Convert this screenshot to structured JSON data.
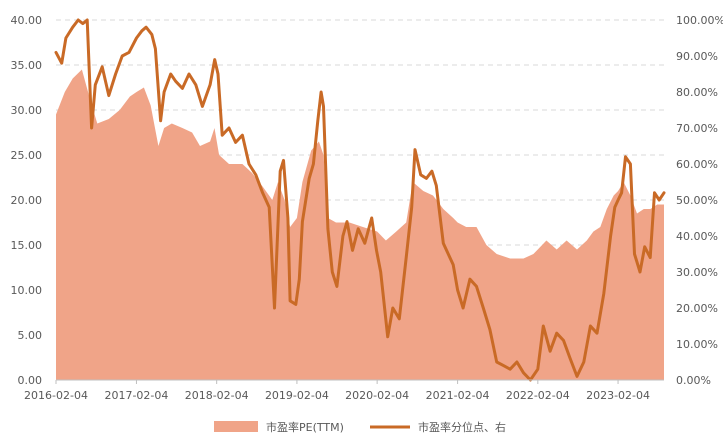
{
  "chart_data": {
    "type": "area",
    "title": "",
    "xlabel": "",
    "ylabel": "",
    "x_ticks": [
      "2016-02-04",
      "2017-02-04",
      "2018-02-04",
      "2019-02-04",
      "2020-02-04",
      "2021-02-04",
      "2022-02-04",
      "2023-02-04"
    ],
    "x_range": [
      "2016-02-04",
      "2023-09-01"
    ],
    "y_left_ticks": [
      "0.00",
      "5.00",
      "10.00",
      "15.00",
      "20.00",
      "25.00",
      "30.00",
      "35.00",
      "40.00"
    ],
    "y_left_range": [
      0,
      40
    ],
    "y_right_ticks": [
      "0.00%",
      "10.00%",
      "20.00%",
      "30.00%",
      "40.00%",
      "50.00%",
      "60.00%",
      "70.00%",
      "80.00%",
      "90.00%",
      "100.00%"
    ],
    "y_right_range": [
      0,
      100
    ],
    "grid": "horizontal dashed",
    "legend_position": "bottom",
    "series": [
      {
        "name": "市盈率PE(TTM)",
        "type": "area",
        "axis": "left",
        "color": "#f0a488",
        "points": [
          [
            "2016-02-04",
            29.5
          ],
          [
            "2016-03-15",
            32.0
          ],
          [
            "2016-04-20",
            33.5
          ],
          [
            "2016-06-01",
            34.5
          ],
          [
            "2016-07-10",
            31.0
          ],
          [
            "2016-08-10",
            28.5
          ],
          [
            "2016-10-01",
            29.0
          ],
          [
            "2016-11-20",
            30.0
          ],
          [
            "2017-01-05",
            31.5
          ],
          [
            "2017-02-04",
            32.0
          ],
          [
            "2017-03-10",
            32.5
          ],
          [
            "2017-04-10",
            30.5
          ],
          [
            "2017-05-15",
            26.0
          ],
          [
            "2017-06-10",
            28.0
          ],
          [
            "2017-07-15",
            28.5
          ],
          [
            "2017-09-01",
            28.0
          ],
          [
            "2017-10-15",
            27.5
          ],
          [
            "2017-11-20",
            26.0
          ],
          [
            "2018-01-05",
            26.5
          ],
          [
            "2018-01-25",
            28.0
          ],
          [
            "2018-02-15",
            25.0
          ],
          [
            "2018-04-01",
            24.0
          ],
          [
            "2018-06-01",
            24.0
          ],
          [
            "2018-07-15",
            23.0
          ],
          [
            "2018-09-01",
            21.5
          ],
          [
            "2018-10-15",
            20.0
          ],
          [
            "2018-11-10",
            22.0
          ],
          [
            "2018-12-10",
            20.0
          ],
          [
            "2019-01-04",
            17.0
          ],
          [
            "2019-02-04",
            18.0
          ],
          [
            "2019-03-01",
            22.0
          ],
          [
            "2019-04-10",
            25.5
          ],
          [
            "2019-05-15",
            26.5
          ],
          [
            "2019-06-05",
            25.0
          ],
          [
            "2019-06-25",
            18.0
          ],
          [
            "2019-08-01",
            17.5
          ],
          [
            "2019-10-01",
            17.5
          ],
          [
            "2019-12-01",
            17.0
          ],
          [
            "2020-02-04",
            16.5
          ],
          [
            "2020-03-15",
            15.5
          ],
          [
            "2020-05-01",
            16.5
          ],
          [
            "2020-06-15",
            17.5
          ],
          [
            "2020-07-15",
            22.0
          ],
          [
            "2020-09-01",
            21.0
          ],
          [
            "2020-10-15",
            20.5
          ],
          [
            "2020-12-01",
            19.0
          ],
          [
            "2021-01-15",
            18.0
          ],
          [
            "2021-02-04",
            17.5
          ],
          [
            "2021-03-15",
            17.0
          ],
          [
            "2021-05-01",
            17.0
          ],
          [
            "2021-06-15",
            15.0
          ],
          [
            "2021-08-01",
            14.0
          ],
          [
            "2021-10-01",
            13.5
          ],
          [
            "2021-12-01",
            13.5
          ],
          [
            "2022-01-15",
            14.0
          ],
          [
            "2022-02-04",
            14.5
          ],
          [
            "2022-03-15",
            15.5
          ],
          [
            "2022-05-01",
            14.5
          ],
          [
            "2022-06-15",
            15.5
          ],
          [
            "2022-08-01",
            14.5
          ],
          [
            "2022-09-15",
            15.5
          ],
          [
            "2022-10-15",
            16.5
          ],
          [
            "2022-11-15",
            17.0
          ],
          [
            "2022-12-15",
            19.0
          ],
          [
            "2023-01-15",
            20.5
          ],
          [
            "2023-02-04",
            21.0
          ],
          [
            "2023-03-01",
            22.0
          ],
          [
            "2023-04-01",
            20.5
          ],
          [
            "2023-05-01",
            18.5
          ],
          [
            "2023-06-01",
            19.0
          ],
          [
            "2023-07-01",
            19.0
          ],
          [
            "2023-08-01",
            19.5
          ],
          [
            "2023-09-01",
            19.5
          ]
        ]
      },
      {
        "name": "市盈率分位点、右",
        "type": "line",
        "axis": "right",
        "color": "#c96a26",
        "points": [
          [
            "2016-02-04",
            91
          ],
          [
            "2016-03-01",
            88
          ],
          [
            "2016-03-20",
            95
          ],
          [
            "2016-04-20",
            98
          ],
          [
            "2016-05-15",
            100
          ],
          [
            "2016-06-05",
            99
          ],
          [
            "2016-06-25",
            100
          ],
          [
            "2016-07-15",
            70
          ],
          [
            "2016-08-01",
            82
          ],
          [
            "2016-09-01",
            87
          ],
          [
            "2016-10-01",
            79
          ],
          [
            "2016-11-01",
            85
          ],
          [
            "2016-12-01",
            90
          ],
          [
            "2017-01-01",
            91
          ],
          [
            "2017-02-04",
            95
          ],
          [
            "2017-03-01",
            97
          ],
          [
            "2017-03-20",
            98
          ],
          [
            "2017-04-15",
            96
          ],
          [
            "2017-05-01",
            92
          ],
          [
            "2017-05-25",
            72
          ],
          [
            "2017-06-10",
            80
          ],
          [
            "2017-07-10",
            85
          ],
          [
            "2017-08-01",
            83
          ],
          [
            "2017-09-01",
            81
          ],
          [
            "2017-10-01",
            85
          ],
          [
            "2017-11-01",
            82
          ],
          [
            "2017-12-01",
            76
          ],
          [
            "2018-01-05",
            82
          ],
          [
            "2018-01-26",
            89
          ],
          [
            "2018-02-10",
            85
          ],
          [
            "2018-03-01",
            68
          ],
          [
            "2018-04-01",
            70
          ],
          [
            "2018-05-01",
            66
          ],
          [
            "2018-06-01",
            68
          ],
          [
            "2018-07-01",
            60
          ],
          [
            "2018-08-01",
            57
          ],
          [
            "2018-09-01",
            52
          ],
          [
            "2018-10-01",
            48
          ],
          [
            "2018-10-25",
            20
          ],
          [
            "2018-11-20",
            58
          ],
          [
            "2018-12-05",
            61
          ],
          [
            "2018-12-25",
            45
          ],
          [
            "2019-01-04",
            22
          ],
          [
            "2019-01-30",
            21
          ],
          [
            "2019-02-15",
            28
          ],
          [
            "2019-03-01",
            44
          ],
          [
            "2019-04-01",
            56
          ],
          [
            "2019-04-20",
            60
          ],
          [
            "2019-05-10",
            72
          ],
          [
            "2019-05-25",
            80
          ],
          [
            "2019-06-05",
            76
          ],
          [
            "2019-06-25",
            42
          ],
          [
            "2019-07-15",
            30
          ],
          [
            "2019-08-05",
            26
          ],
          [
            "2019-09-01",
            40
          ],
          [
            "2019-09-20",
            44
          ],
          [
            "2019-10-15",
            36
          ],
          [
            "2019-11-10",
            42
          ],
          [
            "2019-12-10",
            38
          ],
          [
            "2020-01-10",
            45
          ],
          [
            "2020-02-01",
            36
          ],
          [
            "2020-02-20",
            30
          ],
          [
            "2020-03-23",
            12
          ],
          [
            "2020-04-15",
            20
          ],
          [
            "2020-05-15",
            17
          ],
          [
            "2020-06-15",
            34
          ],
          [
            "2020-07-10",
            48
          ],
          [
            "2020-07-25",
            64
          ],
          [
            "2020-08-20",
            57
          ],
          [
            "2020-09-15",
            56
          ],
          [
            "2020-10-10",
            58
          ],
          [
            "2020-10-30",
            54
          ],
          [
            "2020-12-01",
            38
          ],
          [
            "2021-01-15",
            32
          ],
          [
            "2021-02-04",
            25
          ],
          [
            "2021-03-01",
            20
          ],
          [
            "2021-04-01",
            28
          ],
          [
            "2021-05-01",
            26
          ],
          [
            "2021-06-01",
            20
          ],
          [
            "2021-07-01",
            14
          ],
          [
            "2021-08-01",
            5
          ],
          [
            "2021-09-01",
            4
          ],
          [
            "2021-10-01",
            3
          ],
          [
            "2021-11-01",
            5
          ],
          [
            "2021-12-01",
            2
          ],
          [
            "2022-01-01",
            0
          ],
          [
            "2022-02-04",
            3
          ],
          [
            "2022-03-01",
            15
          ],
          [
            "2022-04-01",
            8
          ],
          [
            "2022-05-01",
            13
          ],
          [
            "2022-06-01",
            11
          ],
          [
            "2022-07-01",
            6
          ],
          [
            "2022-08-01",
            1
          ],
          [
            "2022-09-01",
            5
          ],
          [
            "2022-10-01",
            15
          ],
          [
            "2022-10-31",
            13
          ],
          [
            "2022-12-01",
            24
          ],
          [
            "2023-01-01",
            40
          ],
          [
            "2023-01-20",
            48
          ],
          [
            "2023-02-04",
            50
          ],
          [
            "2023-02-20",
            52
          ],
          [
            "2023-03-10",
            62
          ],
          [
            "2023-04-01",
            60
          ],
          [
            "2023-04-20",
            35
          ],
          [
            "2023-05-15",
            30
          ],
          [
            "2023-06-05",
            37
          ],
          [
            "2023-06-30",
            34
          ],
          [
            "2023-07-20",
            52
          ],
          [
            "2023-08-10",
            50
          ],
          [
            "2023-09-01",
            52
          ]
        ]
      }
    ]
  }
}
